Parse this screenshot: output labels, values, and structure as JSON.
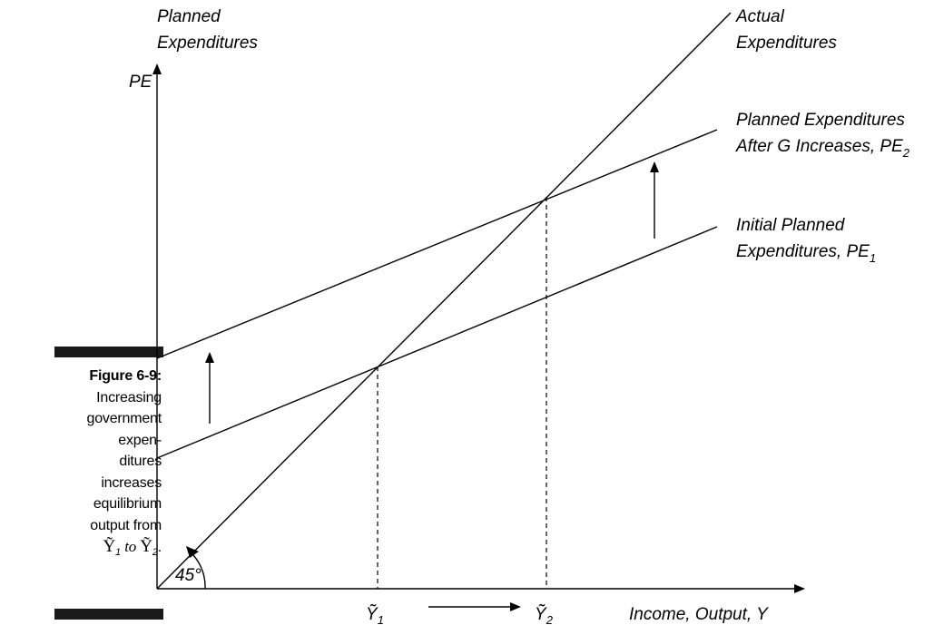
{
  "caption": {
    "figure_label": "Figure 6-9:",
    "lines": [
      "Increasing",
      "government",
      "expen-",
      "ditures",
      "increases",
      "equilibrium",
      "output from"
    ],
    "last_line": {
      "sym1": "Ỹ",
      "sub1": "1",
      "to": "to",
      "sym2": "Ỹ",
      "sub2": "2",
      "end": "."
    }
  },
  "diagram": {
    "y_axis_title_line1": "Planned",
    "y_axis_title_line2": "Expenditures",
    "y_axis_symbol": "PE",
    "x_axis_title": "Income, Output, Y",
    "actual_line1": "Actual",
    "actual_line2": "Expenditures",
    "pe2_line1": "Planned Expenditures",
    "pe2_line2": "After G Increases, PE",
    "pe2_sub": "2",
    "pe1_line1": "Initial Planned",
    "pe1_line2": "Expenditures, PE",
    "pe1_sub": "1",
    "angle_label": "45°",
    "y1_symbol": "Ỹ",
    "y1_sub": "1",
    "y2_symbol": "Ỹ",
    "y2_sub": "2"
  }
}
